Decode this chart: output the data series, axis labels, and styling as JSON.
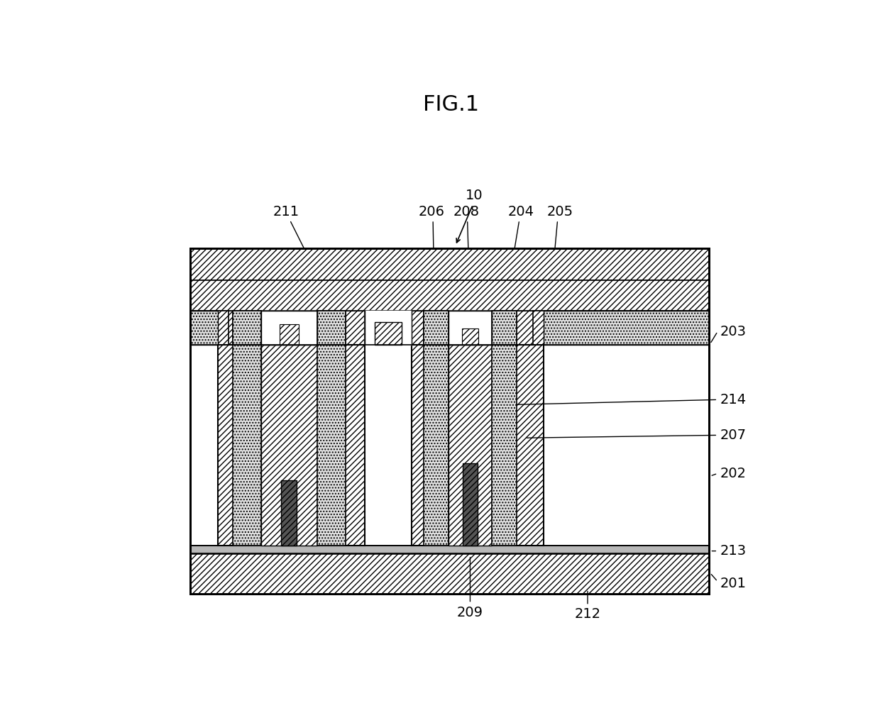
{
  "title": "FIG.1",
  "label_10": "10",
  "label_201": "201",
  "label_202": "202",
  "label_203": "203",
  "label_204": "204",
  "label_205": "205",
  "label_206": "206",
  "label_207": "207",
  "label_208": "208",
  "label_209": "209",
  "label_211": "211",
  "label_212": "212",
  "label_213": "213",
  "label_214": "214",
  "bg": "#ffffff",
  "lc": "#000000"
}
